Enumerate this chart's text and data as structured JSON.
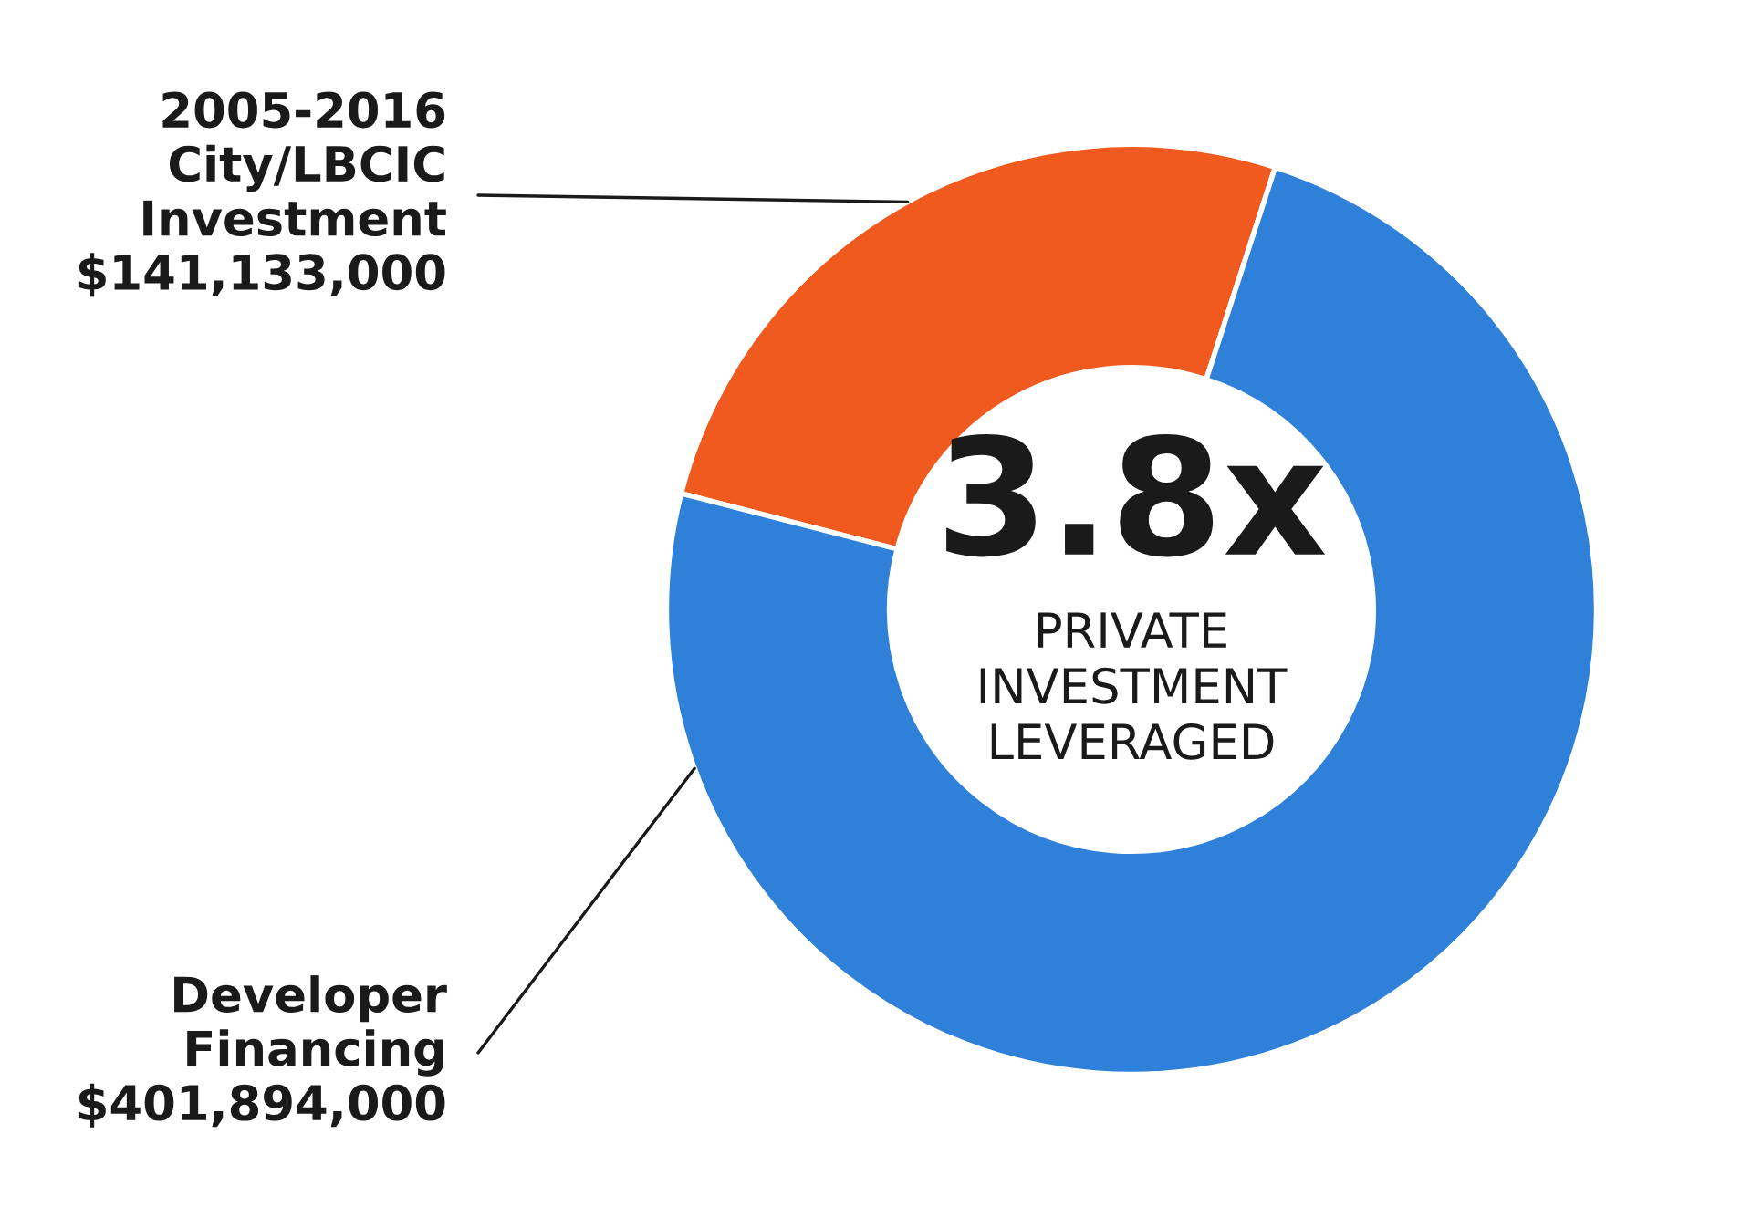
{
  "chart_data": {
    "type": "donut",
    "categories": [
      "2005-2016\nCity/LBCIC\nInvestment",
      "Developer\nFinancing"
    ],
    "values": [
      141133000,
      401894000
    ],
    "value_labels": [
      "$141,133,000",
      "$401,894,000"
    ],
    "colors": [
      "#f05a1e",
      "#2e80d8"
    ],
    "annotations": [
      "3.8x",
      "PRIVATE\nINVESTMENT\nLEVERAGED"
    ],
    "legend": false
  }
}
